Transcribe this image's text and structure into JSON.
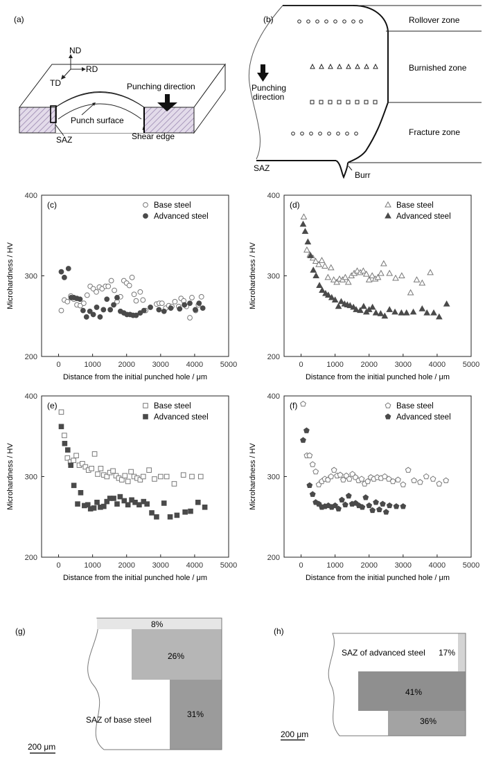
{
  "schematics": {
    "a": {
      "letter": "(a)",
      "axes": {
        "nd": "ND",
        "rd": "RD",
        "td": "TD"
      },
      "punching_direction": "Punching direction",
      "punch_surface": "Punch surface",
      "saz": "SAZ",
      "shear_edge": "Shear edge"
    },
    "b": {
      "letter": "(b)",
      "zones": [
        "Rollover zone",
        "Burnished zone",
        "Fracture zone"
      ],
      "punching_direction_line1": "Punching",
      "punching_direction_line2": "direction",
      "saz": "SAZ",
      "burr": "Burr"
    }
  },
  "chart_data": [
    {
      "panel": "(c)",
      "type": "scatter",
      "xlabel": "Distance from the initial punched hole / μm",
      "ylabel": "Microhardness / HV",
      "xlim": [
        -500,
        5000
      ],
      "ylim": [
        200,
        400
      ],
      "xticks": [
        0,
        1000,
        2000,
        3000,
        4000,
        5000
      ],
      "yticks": [
        200,
        300,
        400
      ],
      "legend_position": "top-right",
      "series": [
        {
          "name": "Base steel",
          "marker": "circle",
          "filled": false,
          "x": [
            80,
            170,
            260,
            360,
            450,
            540,
            640,
            740,
            840,
            930,
            1020,
            1110,
            1200,
            1280,
            1380,
            1460,
            1550,
            1640,
            1720,
            1820,
            1920,
            2000,
            2080,
            2160,
            2220,
            2280,
            2400,
            2480,
            2560,
            2880,
            2960,
            3040,
            3150,
            3240,
            3330,
            3420,
            3530,
            3600,
            3680,
            3760,
            3860,
            3920,
            4030,
            4110,
            4200
          ],
          "y": [
            257,
            270,
            268,
            275,
            271,
            264,
            263,
            266,
            276,
            287,
            284,
            280,
            286,
            284,
            287,
            287,
            294,
            282,
            268,
            274,
            294,
            291,
            288,
            298,
            277,
            269,
            280,
            270,
            257,
            265,
            266,
            266,
            260,
            263,
            262,
            268,
            262,
            272,
            269,
            262,
            248,
            273,
            257,
            264,
            274
          ]
        },
        {
          "name": "Advanced steel",
          "marker": "circle",
          "filled": true,
          "x": [
            80,
            170,
            290,
            370,
            450,
            540,
            630,
            720,
            820,
            920,
            1020,
            1120,
            1220,
            1320,
            1420,
            1520,
            1620,
            1720,
            1820,
            1920,
            2010,
            2100,
            2190,
            2280,
            2400,
            2510,
            2700,
            2950,
            3100,
            3300,
            3560,
            3700,
            3860,
            4020,
            4130,
            4240
          ],
          "y": [
            305,
            298,
            309,
            273,
            273,
            272,
            271,
            257,
            249,
            256,
            252,
            261,
            249,
            258,
            271,
            258,
            264,
            273,
            256,
            254,
            252,
            252,
            251,
            251,
            254,
            257,
            261,
            258,
            256,
            260,
            259,
            264,
            266,
            258,
            266,
            260
          ]
        }
      ]
    },
    {
      "panel": "(d)",
      "type": "scatter",
      "xlabel": "Distance from the initial punched hole / μm",
      "ylabel": "Microhardness / HV",
      "xlim": [
        -500,
        5000
      ],
      "ylim": [
        200,
        400
      ],
      "xticks": [
        0,
        1000,
        2000,
        3000,
        4000,
        5000
      ],
      "yticks": [
        200,
        300,
        400
      ],
      "legend_position": "top-right",
      "series": [
        {
          "name": "Base steel",
          "marker": "triangle",
          "filled": false,
          "x": [
            80,
            170,
            260,
            350,
            430,
            520,
            610,
            700,
            790,
            880,
            960,
            1050,
            1130,
            1220,
            1300,
            1390,
            1480,
            1560,
            1650,
            1740,
            1830,
            1920,
            2000,
            2090,
            2180,
            2260,
            2350,
            2430,
            2600,
            2780,
            2960,
            3220,
            3400,
            3560,
            3800
          ],
          "y": [
            373,
            332,
            326,
            322,
            318,
            314,
            319,
            312,
            298,
            310,
            295,
            292,
            296,
            295,
            298,
            292,
            300,
            303,
            306,
            304,
            306,
            302,
            295,
            300,
            296,
            298,
            303,
            315,
            303,
            297,
            300,
            279,
            295,
            291,
            304
          ]
        },
        {
          "name": "Advanced steel",
          "marker": "triangle",
          "filled": true,
          "x": [
            60,
            120,
            200,
            280,
            360,
            440,
            540,
            620,
            720,
            800,
            900,
            1000,
            1100,
            1180,
            1280,
            1360,
            1440,
            1540,
            1620,
            1740,
            1840,
            1920,
            2000,
            2100,
            2200,
            2340,
            2460,
            2600,
            2760,
            2950,
            3100,
            3300,
            3560,
            3700,
            3900,
            4060,
            4280
          ],
          "y": [
            364,
            355,
            342,
            325,
            307,
            300,
            288,
            282,
            278,
            276,
            273,
            270,
            262,
            268,
            265,
            264,
            263,
            261,
            258,
            257,
            262,
            255,
            258,
            261,
            254,
            253,
            250,
            258,
            255,
            254,
            254,
            255,
            259,
            254,
            254,
            249,
            265
          ]
        }
      ]
    },
    {
      "panel": "(e)",
      "type": "scatter",
      "xlabel": "Distance from the initial punched hole / μm",
      "ylabel": "Microhardness / HV",
      "xlim": [
        -500,
        5000
      ],
      "ylim": [
        200,
        400
      ],
      "xticks": [
        0,
        1000,
        2000,
        3000,
        4000,
        5000
      ],
      "yticks": [
        200,
        300,
        400
      ],
      "legend_position": "top-right",
      "series": [
        {
          "name": "Base steel",
          "marker": "square",
          "filled": false,
          "x": [
            80,
            170,
            260,
            350,
            440,
            520,
            610,
            700,
            790,
            880,
            970,
            1060,
            1150,
            1240,
            1330,
            1420,
            1510,
            1600,
            1690,
            1770,
            1860,
            1950,
            2040,
            2130,
            2220,
            2310,
            2400,
            2490,
            2660,
            2820,
            3000,
            3180,
            3400,
            3670,
            3920,
            4180
          ],
          "y": [
            380,
            351,
            323,
            318,
            320,
            326,
            314,
            316,
            312,
            308,
            310,
            328,
            303,
            310,
            302,
            300,
            305,
            307,
            301,
            298,
            296,
            301,
            294,
            306,
            300,
            298,
            296,
            300,
            308,
            297,
            300,
            300,
            291,
            302,
            300,
            300
          ]
        },
        {
          "name": "Advanced steel",
          "marker": "square",
          "filled": true,
          "x": [
            80,
            180,
            270,
            360,
            450,
            560,
            650,
            760,
            860,
            940,
            1040,
            1130,
            1230,
            1330,
            1420,
            1510,
            1620,
            1720,
            1810,
            1930,
            2040,
            2150,
            2250,
            2370,
            2500,
            2600,
            2740,
            2880,
            3100,
            3280,
            3480,
            3720,
            3880,
            4100,
            4300
          ],
          "y": [
            362,
            341,
            333,
            314,
            289,
            266,
            280,
            264,
            265,
            260,
            261,
            268,
            262,
            263,
            269,
            273,
            273,
            266,
            275,
            270,
            265,
            271,
            268,
            265,
            269,
            266,
            255,
            250,
            267,
            250,
            252,
            256,
            257,
            268,
            262
          ]
        }
      ]
    },
    {
      "panel": "(f)",
      "type": "scatter",
      "xlabel": "Distance from the initial punched hole / μm",
      "ylabel": "Microhardness / HV",
      "xlim": [
        -500,
        5000
      ],
      "ylim": [
        200,
        400
      ],
      "xticks": [
        0,
        1000,
        2000,
        3000,
        4000,
        5000
      ],
      "yticks": [
        200,
        300,
        400
      ],
      "legend_position": "top-right",
      "series": [
        {
          "name": "Base steel",
          "marker": "pentagon",
          "filled": false,
          "x": [
            60,
            170,
            250,
            340,
            430,
            520,
            610,
            700,
            790,
            880,
            970,
            1060,
            1150,
            1240,
            1330,
            1420,
            1510,
            1600,
            1690,
            1780,
            1870,
            1960,
            2050,
            2140,
            2240,
            2350,
            2460,
            2580,
            2700,
            2850,
            3000,
            3150,
            3320,
            3500,
            3680,
            3880,
            4060,
            4260
          ],
          "y": [
            390,
            326,
            326,
            315,
            306,
            290,
            294,
            297,
            296,
            300,
            308,
            301,
            302,
            296,
            301,
            297,
            303,
            299,
            295,
            297,
            291,
            294,
            299,
            297,
            299,
            298,
            300,
            297,
            294,
            296,
            290,
            308,
            295,
            293,
            300,
            297,
            291,
            295
          ]
        },
        {
          "name": "Advanced steel",
          "marker": "pentagon",
          "filled": true,
          "x": [
            60,
            160,
            250,
            340,
            430,
            520,
            610,
            700,
            800,
            900,
            1000,
            1100,
            1200,
            1300,
            1400,
            1500,
            1600,
            1700,
            1800,
            1900,
            2000,
            2100,
            2200,
            2300,
            2400,
            2500,
            2600,
            2800,
            3000
          ],
          "y": [
            345,
            357,
            289,
            278,
            268,
            266,
            262,
            263,
            264,
            262,
            264,
            260,
            271,
            265,
            276,
            266,
            267,
            264,
            262,
            274,
            264,
            258,
            268,
            259,
            266,
            256,
            264,
            263,
            263
          ]
        }
      ]
    }
  ],
  "saz_maps": {
    "g": {
      "letter": "(g)",
      "label": "SAZ of base steel",
      "percents": [
        "8%",
        "26%",
        "31%"
      ],
      "scale_bar": "200 μm"
    },
    "h": {
      "letter": "(h)",
      "label": "SAZ of advanced steel",
      "percents": [
        "17%",
        "41%",
        "36%"
      ],
      "scale_bar": "200 μm"
    }
  }
}
